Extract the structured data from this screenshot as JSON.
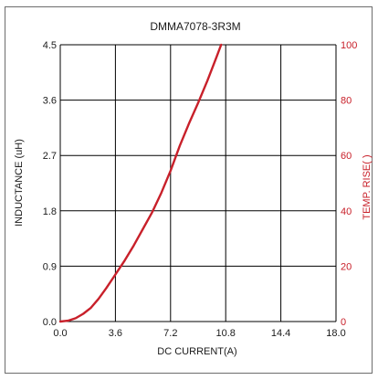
{
  "chart_data": {
    "type": "line",
    "title": "DMMA7078-3R3M",
    "xlabel": "DC CURRENT(A)",
    "ylabel": "INDUCTANCE (uH)",
    "y2label": "TEMP. RISE(   )",
    "xlim": [
      0,
      18
    ],
    "ylim": [
      0,
      4.5
    ],
    "y2lim": [
      0,
      100
    ],
    "x_ticks": [
      "0.0",
      "3.6",
      "7.2",
      "10.8",
      "14.4",
      "18.0"
    ],
    "y_ticks": [
      "0.0",
      "0.9",
      "1.8",
      "2.7",
      "3.6",
      "4.5"
    ],
    "y2_ticks": [
      "0",
      "20",
      "40",
      "60",
      "80",
      "100"
    ],
    "grid": true,
    "colors": {
      "series": "#c8202a",
      "grid": "#000000",
      "axis_right": "#c8202a"
    },
    "series": [
      {
        "axis": "y2",
        "x": [
          0,
          0.5,
          1.0,
          1.5,
          2.0,
          2.5,
          3.0,
          3.6,
          4.2,
          4.8,
          5.4,
          6.0,
          6.6,
          7.2,
          7.8,
          8.4,
          9.0,
          9.6,
          10.2,
          10.5
        ],
        "values": [
          0,
          0.3,
          1.2,
          2.8,
          5.0,
          8.2,
          12.0,
          17.0,
          22.0,
          27.5,
          33.5,
          39.5,
          46.5,
          54.5,
          63.5,
          71.5,
          79.0,
          87.0,
          95.5,
          100
        ]
      }
    ]
  }
}
